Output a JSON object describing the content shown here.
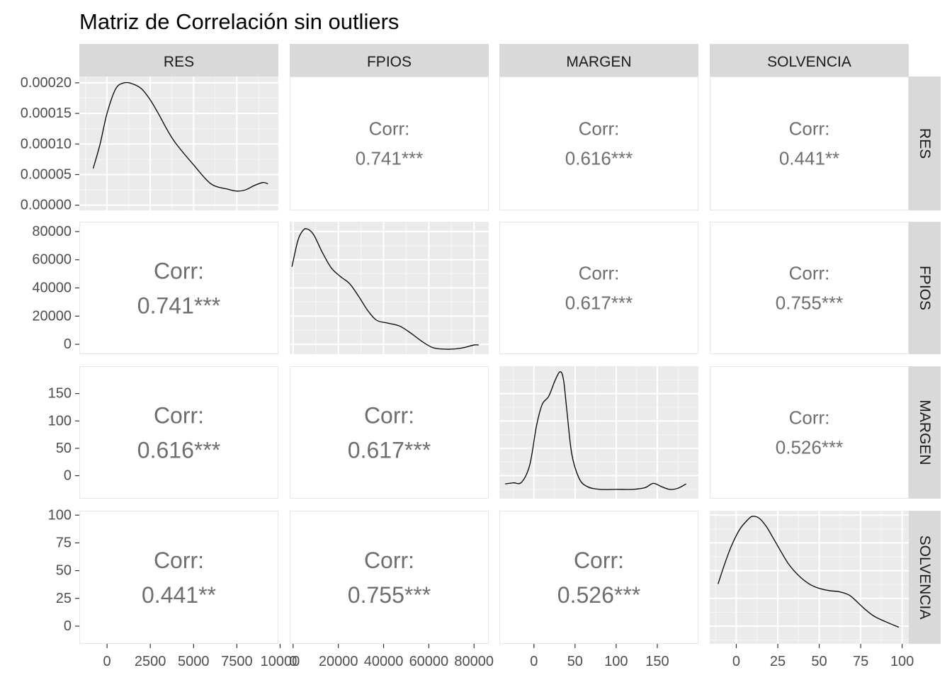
{
  "chart_data": {
    "type": "scatterplot-matrix",
    "title": "Matriz de Correlación sin outliers",
    "variables": [
      "RES",
      "FPIOS",
      "MARGEN",
      "SOLVENCIA"
    ],
    "corr_label": "Corr:",
    "correlations": [
      {
        "row": "FPIOS",
        "col": "RES",
        "value": "0.741***"
      },
      {
        "row": "MARGEN",
        "col": "RES",
        "value": "0.616***"
      },
      {
        "row": "SOLVENCIA",
        "col": "RES",
        "value": "0.441**"
      },
      {
        "row": "MARGEN",
        "col": "FPIOS",
        "value": "0.617***"
      },
      {
        "row": "SOLVENCIA",
        "col": "FPIOS",
        "value": "0.755***"
      },
      {
        "row": "SOLVENCIA",
        "col": "MARGEN",
        "value": "0.526***"
      }
    ],
    "x_axes": [
      {
        "variable": "RES",
        "range": [
          -1600,
          9900
        ],
        "ticks": [
          0,
          2500,
          5000,
          7500,
          10000
        ],
        "tick_labels": [
          "0",
          "2500",
          "5000",
          "7500",
          "10000"
        ]
      },
      {
        "variable": "FPIOS",
        "range": [
          -1500,
          86500
        ],
        "ticks": [
          0,
          20000,
          40000,
          60000,
          80000
        ],
        "tick_labels": [
          "0",
          "20000",
          "40000",
          "60000",
          "80000"
        ]
      },
      {
        "variable": "MARGEN",
        "range": [
          -42,
          200
        ],
        "ticks": [
          0,
          50,
          100,
          150
        ],
        "tick_labels": [
          "0",
          "50",
          "100",
          "150"
        ]
      },
      {
        "variable": "SOLVENCIA",
        "range": [
          -16,
          104
        ],
        "ticks": [
          0,
          25,
          50,
          75,
          100
        ],
        "tick_labels": [
          "0",
          "25",
          "50",
          "75",
          "100"
        ]
      }
    ],
    "y_axes": [
      {
        "variable": "RES",
        "range": [
          -8.5e-06,
          0.0002103
        ],
        "ticks": [
          0,
          5e-05,
          0.0001,
          0.00015,
          0.0002
        ],
        "tick_labels": [
          "0.00000",
          "0.00005",
          "0.00010",
          "0.00015",
          "0.00020"
        ]
      },
      {
        "variable": "FPIOS",
        "range": [
          -7000,
          87000
        ],
        "ticks": [
          0,
          20000,
          40000,
          60000,
          80000
        ],
        "tick_labels": [
          "0",
          "20000",
          "40000",
          "60000",
          "80000"
        ]
      },
      {
        "variable": "MARGEN",
        "range": [
          -42,
          200
        ],
        "ticks": [
          0,
          50,
          100,
          150
        ],
        "tick_labels": [
          "0",
          "50",
          "100",
          "150"
        ]
      },
      {
        "variable": "SOLVENCIA",
        "range": [
          -16,
          104
        ],
        "ticks": [
          0,
          25,
          50,
          75,
          100
        ],
        "tick_labels": [
          "0",
          "25",
          "50",
          "75",
          "100"
        ]
      }
    ],
    "densities": [
      {
        "variable": "RES",
        "x": [
          -800,
          -400,
          0,
          500,
          1000,
          1500,
          2000,
          2500,
          3000,
          3500,
          4000,
          5000,
          6000,
          7000,
          7500,
          8000,
          8500,
          9000,
          9300
        ],
        "y": [
          6e-05,
          0.0001,
          0.00015,
          0.00019,
          0.0002,
          0.000198,
          0.00019,
          0.000172,
          0.000148,
          0.000122,
          0.0001,
          6.6e-05,
          3.5e-05,
          2.6e-05,
          2.3e-05,
          2.5e-05,
          3.2e-05,
          3.7e-05,
          3.5e-05
        ]
      },
      {
        "variable": "FPIOS",
        "x": [
          -500,
          2000,
          4000,
          6000,
          9000,
          13000,
          17000,
          21000,
          25000,
          29000,
          33000,
          37000,
          42000,
          47000,
          52000,
          57000,
          62000,
          68000,
          74000,
          80000,
          82000
        ],
        "y": [
          55000,
          73000,
          80000,
          82000,
          78000,
          65000,
          54000,
          48000,
          43000,
          34000,
          24000,
          17000,
          15000,
          13000,
          8000,
          2000,
          -2500,
          -3500,
          -2800,
          -500,
          -500
        ]
      },
      {
        "variable": "MARGEN",
        "x": [
          -35,
          -25,
          -15,
          -5,
          3,
          10,
          18,
          26,
          32,
          36,
          40,
          46,
          55,
          65,
          80,
          100,
          120,
          135,
          145,
          155,
          165,
          175,
          185
        ],
        "y": [
          -15,
          -13,
          -12,
          20,
          90,
          130,
          145,
          175,
          190,
          175,
          120,
          40,
          -5,
          -20,
          -25,
          -25,
          -25,
          -22,
          -14,
          -20,
          -25,
          -23,
          -15
        ]
      },
      {
        "variable": "SOLVENCIA",
        "x": [
          -11,
          -7,
          -3,
          2,
          7,
          10,
          14,
          18,
          22,
          27,
          32,
          38,
          44,
          50,
          56,
          62,
          68,
          72,
          77,
          83,
          90,
          98
        ],
        "y": [
          38,
          56,
          72,
          87,
          96,
          99,
          97,
          90,
          80,
          67,
          55,
          45,
          38,
          34,
          32,
          31,
          28,
          23,
          16,
          9,
          4,
          -1
        ]
      }
    ]
  },
  "colors": {
    "panel_bg": "#ebebeb",
    "grid_major": "#ffffff",
    "strip_bg": "#d9d9d9",
    "frame": "#e6e6e6",
    "line": "#000000",
    "corr_text": "#6e6e6e",
    "tick_text": "#4d4d4d"
  }
}
